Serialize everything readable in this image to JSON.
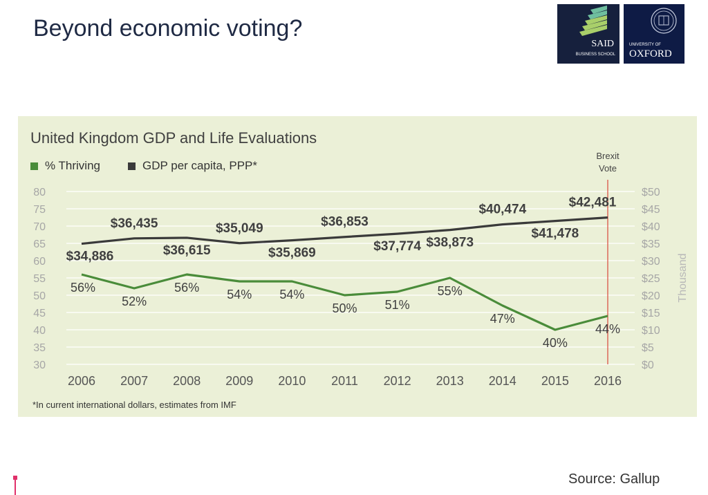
{
  "slide": {
    "title": "Beyond economic voting?",
    "source": "Source: Gallup"
  },
  "logos": {
    "said_big": "SAID",
    "said_small": "BUSINESS SCHOOL",
    "oxford_small": "UNIVERSITY OF",
    "oxford_big": "OXFORD"
  },
  "colors": {
    "panel_bg": "#ebf0d7",
    "thriving": "#4a8c3a",
    "gdp": "#3a3a3a",
    "event_line": "#d9453a",
    "axis_text": "#a6a6a6"
  },
  "chart_data": {
    "type": "line",
    "title": "United Kingdom GDP and Life Evaluations",
    "footnote": "*In current international dollars, estimates from IMF",
    "x": [
      "2006",
      "2007",
      "2008",
      "2009",
      "2010",
      "2011",
      "2012",
      "2013",
      "2014",
      "2015",
      "2016"
    ],
    "y_left": {
      "ylim": [
        30,
        80
      ],
      "ticks": [
        80,
        75,
        70,
        65,
        60,
        55,
        50,
        45,
        40,
        35,
        30
      ]
    },
    "y_right": {
      "ylim": [
        0,
        50
      ],
      "ticks": [
        "$50",
        "$45",
        "$40",
        "$35",
        "$30",
        "$25",
        "$20",
        "$15",
        "$10",
        "$5",
        "$0"
      ],
      "unit_label": "Thousand"
    },
    "series": [
      {
        "name": "% Thriving",
        "axis": "left",
        "values": [
          56,
          52,
          56,
          54,
          54,
          50,
          51,
          55,
          47,
          40,
          44
        ],
        "labels": [
          "56%",
          "52%",
          "56%",
          "54%",
          "54%",
          "50%",
          "51%",
          "55%",
          "47%",
          "40%",
          "44%"
        ]
      },
      {
        "name": "GDP per capita, PPP*",
        "axis": "right",
        "values": [
          34.886,
          36.435,
          36.615,
          35.049,
          35.869,
          36.853,
          37.774,
          38.873,
          40.474,
          41.478,
          42.481
        ],
        "labels": [
          "$34,886",
          "$36,435",
          "$36,615",
          "$35,049",
          "$35,869",
          "$36,853",
          "$37,774",
          "$38,873",
          "$40,474",
          "$41,478",
          "$42,481"
        ]
      }
    ],
    "annotations": [
      {
        "x": "2016",
        "text_line1": "Brexit",
        "text_line2": "Vote"
      }
    ]
  }
}
